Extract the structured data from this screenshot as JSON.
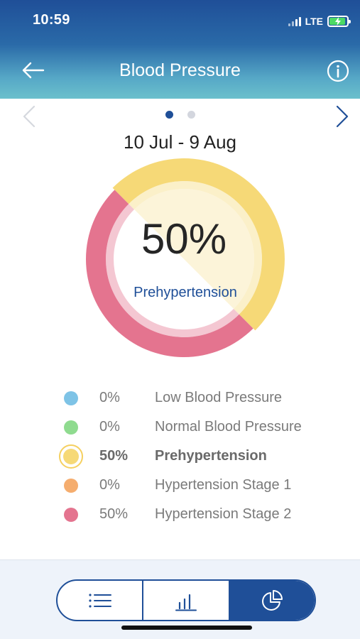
{
  "status_bar": {
    "time": "10:59",
    "network": "LTE"
  },
  "header": {
    "title": "Blood Pressure",
    "back_icon": "arrow-left-icon",
    "info_icon": "info-icon"
  },
  "pager": {
    "pages": 2,
    "active_page": 1
  },
  "date_range": "10 Jul - 9 Aug",
  "summary": {
    "percent": "50%",
    "label": "Prehypertension"
  },
  "chart_data": {
    "type": "pie",
    "categories": [
      "Low Blood Pressure",
      "Normal Blood Pressure",
      "Prehypertension",
      "Hypertension Stage 1",
      "Hypertension Stage 2"
    ],
    "values": [
      0,
      0,
      50,
      0,
      50
    ],
    "colors": [
      "#7ec3e6",
      "#8fdb8f",
      "#f6d977",
      "#f5ad6e",
      "#e4748f"
    ],
    "highlighted": "Prehypertension"
  },
  "legend": [
    {
      "percent": "0%",
      "name": "Low Blood Pressure",
      "color": "#7ec3e6",
      "selected": false
    },
    {
      "percent": "0%",
      "name": "Normal Blood Pressure",
      "color": "#8fdb8f",
      "selected": false
    },
    {
      "percent": "50%",
      "name": "Prehypertension",
      "color": "#f6d977",
      "selected": true
    },
    {
      "percent": "0%",
      "name": "Hypertension Stage 1",
      "color": "#f5ad6e",
      "selected": false
    },
    {
      "percent": "50%",
      "name": "Hypertension Stage 2",
      "color": "#e4748f",
      "selected": false
    }
  ],
  "view_toggle": {
    "options": [
      "list-icon",
      "bar-chart-icon",
      "pie-chart-icon"
    ],
    "active": "pie-chart-icon"
  },
  "colors": {
    "primary": "#1f4f98",
    "accent_teal": "#6bc0cc"
  }
}
